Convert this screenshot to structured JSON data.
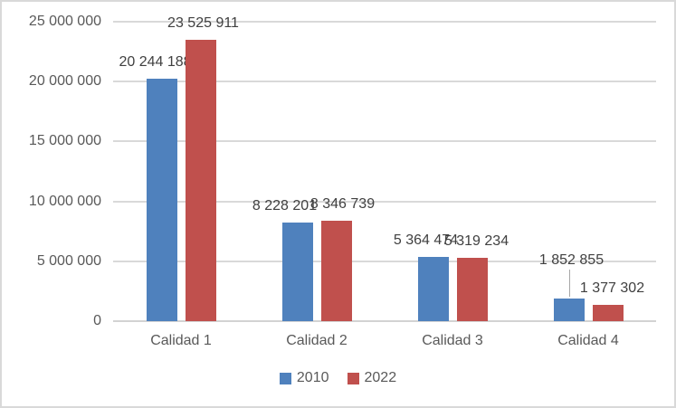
{
  "chart_data": {
    "type": "bar",
    "title": "",
    "categories": [
      "Calidad 1",
      "Calidad 2",
      "Calidad 3",
      "Calidad 4"
    ],
    "series": [
      {
        "name": "2010",
        "color": "#4F81BD",
        "values": [
          20244188,
          8228201,
          5364474,
          1852855
        ],
        "labels": [
          "20 244 188",
          "8 228 201",
          "5 364 474",
          "1 852 855"
        ]
      },
      {
        "name": "2022",
        "color": "#C0504D",
        "values": [
          23525911,
          8346739,
          5319234,
          1377302
        ],
        "labels": [
          "23 525 911",
          "8 346 739",
          "5 319 234",
          "1 377 302"
        ]
      }
    ],
    "y_axis": {
      "min": 0,
      "max": 25000000,
      "step": 5000000,
      "tick_labels": [
        "0",
        "5 000 000",
        "10 000 000",
        "15 000 000",
        "20 000 000",
        "25 000 000"
      ]
    },
    "legend": {
      "position": "bottom",
      "entries": [
        "2010",
        "2022"
      ]
    },
    "grid": true,
    "data_labels": "outside-end"
  },
  "colors": {
    "background": "#FFFFFF",
    "border": "#D9D9D9",
    "gridline": "#D9D9D9",
    "axis_text": "#595959",
    "data_label_text": "#404040",
    "leader_line": "#A6A6A6"
  }
}
